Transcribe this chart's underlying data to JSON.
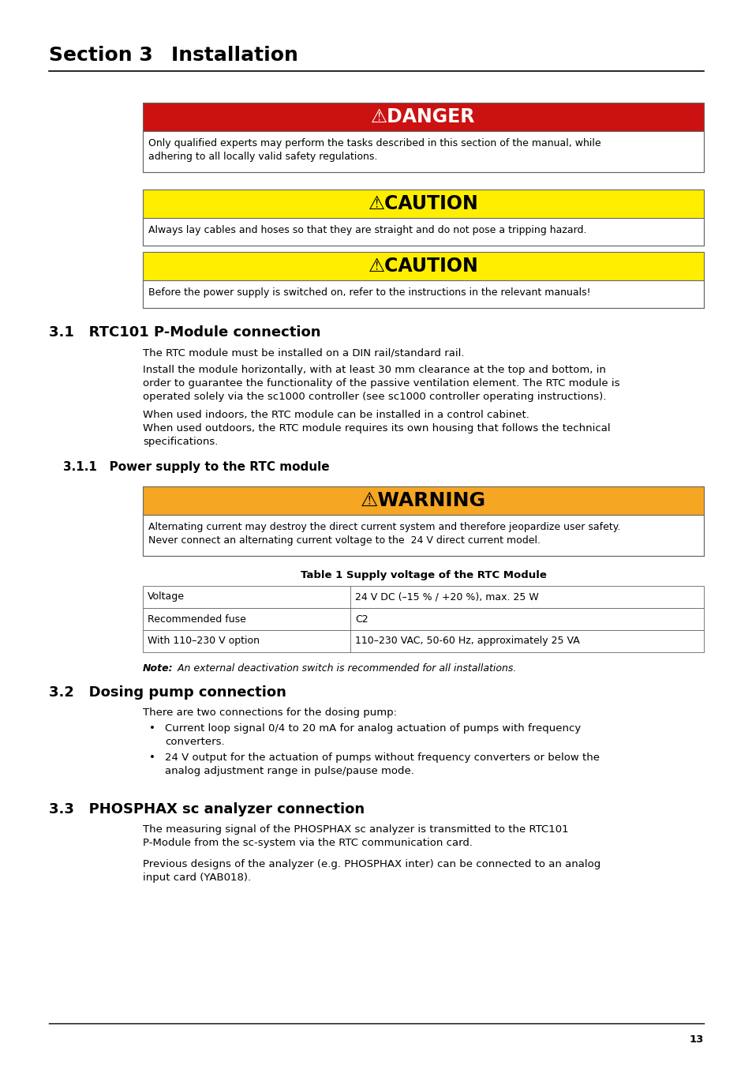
{
  "page_title_sec": "Section 3",
  "page_title_inst": "    Installation",
  "danger_header": "⚠DANGER",
  "danger_body": "Only qualified experts may perform the tasks described in this section of the manual, while\nadhering to all locally valid safety regulations.",
  "caution1_header": "⚠CAUTION",
  "caution1_body": "Always lay cables and hoses so that they are straight and do not pose a tripping hazard.",
  "caution2_header": "⚠CAUTION",
  "caution2_body": "Before the power supply is switched on, refer to the instructions in the relevant manuals!",
  "s31_title": "3.1   RTC101 P-Module connection",
  "s31_p1": "The RTC module must be installed on a DIN rail/standard rail.",
  "s31_p2l1": "Install the module horizontally, with at least 30 mm clearance at the top and bottom, in",
  "s31_p2l2": "order to guarantee the functionality of the passive ventilation element. The RTC module is",
  "s31_p2l3": "operated solely via the sc1000 controller (see sc1000 controller operating instructions).",
  "s31_p3l1": "When used indoors, the RTC module can be installed in a control cabinet.",
  "s31_p3l2": "When used outdoors, the RTC module requires its own housing that follows the technical",
  "s31_p3l3": "specifications.",
  "s311_title": "3.1.1   Power supply to the RTC module",
  "warning_header": "⚠WARNING",
  "warning_body1": "Alternating current may destroy the direct current system and therefore jeopardize user safety.",
  "warning_body2": "Never connect an alternating current voltage to the  24 V direct current model.",
  "table_title": "Table 1 Supply voltage of the RTC Module",
  "table_row1": [
    "Voltage",
    "24 V DC (–15 % / +20 %), max. 25 W"
  ],
  "table_row2": [
    "Recommended fuse",
    "C2"
  ],
  "table_row3": [
    "With 110–230 V option",
    "110–230 VAC, 50-60 Hz, approximately 25 VA"
  ],
  "note_bold": "Note:",
  "note_italic": " An external deactivation switch is recommended for all installations.",
  "s32_title": "3.2   Dosing pump connection",
  "s32_p1": "There are two connections for the dosing pump:",
  "s32_b1l1": "Current loop signal 0/4 to 20 mA for analog actuation of pumps with frequency",
  "s32_b1l2": "converters.",
  "s32_b2l1": "24 V output for the actuation of pumps without frequency converters or below the",
  "s32_b2l2": "analog adjustment range in pulse/pause mode.",
  "s33_title": "3.3   PHOSPHAX sc analyzer connection",
  "s33_p1l1": "The measuring signal of the PHOSPHAX sc analyzer is transmitted to the RTC101",
  "s33_p1l2": "P-Module from the sc-system via the RTC communication card.",
  "s33_p2l1": "Previous designs of the analyzer (e.g. PHOSPHAX inter) can be connected to an analog",
  "s33_p2l2": "input card (YAB018).",
  "page_num": "13",
  "danger_red": "#cc1111",
  "caution_yellow": "#ffee00",
  "warning_orange": "#f5a623",
  "border_gray": "#666666",
  "white": "#ffffff",
  "black": "#000000"
}
